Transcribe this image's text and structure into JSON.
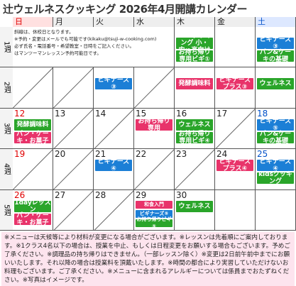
{
  "title": "辻ウェルネスクッキング 2026年4月開講カレンダー",
  "weekdays": [
    {
      "label": "日",
      "color": "#e00000"
    },
    {
      "label": "月",
      "color": "#222"
    },
    {
      "label": "火",
      "color": "#222"
    },
    {
      "label": "水",
      "color": "#222"
    },
    {
      "label": "木",
      "color": "#222"
    },
    {
      "label": "金",
      "color": "#222"
    },
    {
      "label": "土",
      "color": "#0050c8"
    }
  ],
  "weeks": [
    {
      "label": "1週",
      "cells": [
        {
          "span": 4,
          "lines": [
            "斜線は、休校日となります。",
            "※予約・変更はメールでも可能です(kikaku@tsuji-w-cooking.com)",
            "必ず氏名・電話番号・希望教室・日時をご記入ください。",
            "はマンツーマンレッスン予約可能日です。"
          ]
        },
        {
          "events": [
            {
              "text": "kidsクッキング 小・中・高向け",
              "color": "#2aa52a"
            },
            {
              "text": "お持ち帰り専用ビギ①",
              "color": "#2aa52a"
            }
          ]
        },
        {
          "events": []
        },
        {
          "events": [
            {
              "text": "ビギナーズ③",
              "color": "#1c7fd6"
            },
            {
              "text": "パン&ケーキの基礎",
              "color": "#2aa52a"
            }
          ]
        }
      ]
    },
    {
      "label": "2週",
      "cells": [
        {
          "closed": true
        },
        {
          "closed": true
        },
        {
          "events": [
            {
              "text": "ビギナーズ③",
              "color": "#1c7fd6"
            }
          ]
        },
        {
          "closed": true
        },
        {
          "events": [
            {
              "text": "発酵調味料",
              "color": "#e8336a"
            }
          ]
        },
        {
          "events": [
            {
              "text": "ビギナーズプラス③",
              "color": "#e8336a"
            }
          ]
        },
        {
          "events": [
            {
              "text": "ウェルネス",
              "color": "#2aa52a"
            }
          ]
        }
      ]
    },
    {
      "label": "3週",
      "cells": [
        {
          "date": "12",
          "events": [
            {
              "text": "発酵調味料",
              "color": "#2aa52a"
            },
            {
              "text": "パン・ケーキ・お菓子",
              "color": "#e8336a"
            }
          ]
        },
        {
          "date": "13",
          "closed": true
        },
        {
          "date": "14",
          "closed": true
        },
        {
          "date": "15",
          "events": [
            {
              "text": "お持ち帰り専用",
              "color": "#e8336a"
            }
          ]
        },
        {
          "date": "16",
          "events": [
            {
              "text": "ウェルネス",
              "color": "#2aa52a"
            },
            {
              "text": "お持ち帰り専用ビギ④",
              "color": "#2aa52a"
            }
          ]
        },
        {
          "date": "17",
          "closed": true
        },
        {
          "date": "18",
          "events": [
            {
              "text": "ビギナーズ⑤",
              "color": "#1c7fd6"
            },
            {
              "text": "パン&ケーキの基礎",
              "color": "#2aa52a"
            }
          ]
        }
      ]
    },
    {
      "label": "4週",
      "cells": [
        {
          "date": "19",
          "closed": true
        },
        {
          "date": "20",
          "closed": true
        },
        {
          "date": "21",
          "events": [
            {
              "text": "ビギナーズ④",
              "color": "#1c7fd6"
            }
          ]
        },
        {
          "date": "22",
          "closed": true
        },
        {
          "date": "23",
          "closed": true
        },
        {
          "date": "24",
          "events": [
            {
              "text": "ビギナーズプラス④",
              "color": "#e8336a"
            }
          ]
        },
        {
          "date": "25",
          "events": [
            {
              "text": "ビギナーズ④",
              "color": "#1c7fd6"
            },
            {
              "text": "kidsクッキング",
              "color": "#2aa52a"
            }
          ]
        }
      ]
    },
    {
      "label": "5週",
      "cells": [
        {
          "date": "26",
          "events": [
            {
              "text": "1dayレッスン",
              "color": "#2aa52a"
            },
            {
              "text": "パン・ケーキ・お菓子",
              "color": "#e8336a"
            }
          ]
        },
        {
          "date": "27",
          "closed": true
        },
        {
          "date": "28",
          "closed": true
        },
        {
          "date": "29",
          "events": [
            {
              "text": "和食入門",
              "color": "#e8336a"
            },
            {
              "text": "ビギナーズ⑤",
              "color": "#1c7fd6"
            },
            {
              "text": "お持ち帰りビギ⑤",
              "color": "#2aa52a"
            }
          ]
        },
        {
          "date": "30",
          "events": [
            {
              "text": "ウェルネス",
              "color": "#2aa52a"
            }
          ]
        },
        {
          "closed": false
        },
        {
          "closed": false
        }
      ]
    }
  ],
  "notes": "※メニューは天候等により材料が変更になる場合がございます。※レッスンは先着順にご案内しております。※1クラス4名以下の場合は、授業を中止、もしくは日程変更をお願いする場合もございます。予めご了承ください。※調理品の持ち帰りはできません。（一部レッスン除く）※変更は2日前午前中までにお願いいたします。それ以降の場合は授業料を頂戴いたします。※時間の都合により実習していただけないお料理もございます。ご了承ください。※メニューに含まれるアレルギーについては係員までおたずねください。※写真はイメージです。"
}
